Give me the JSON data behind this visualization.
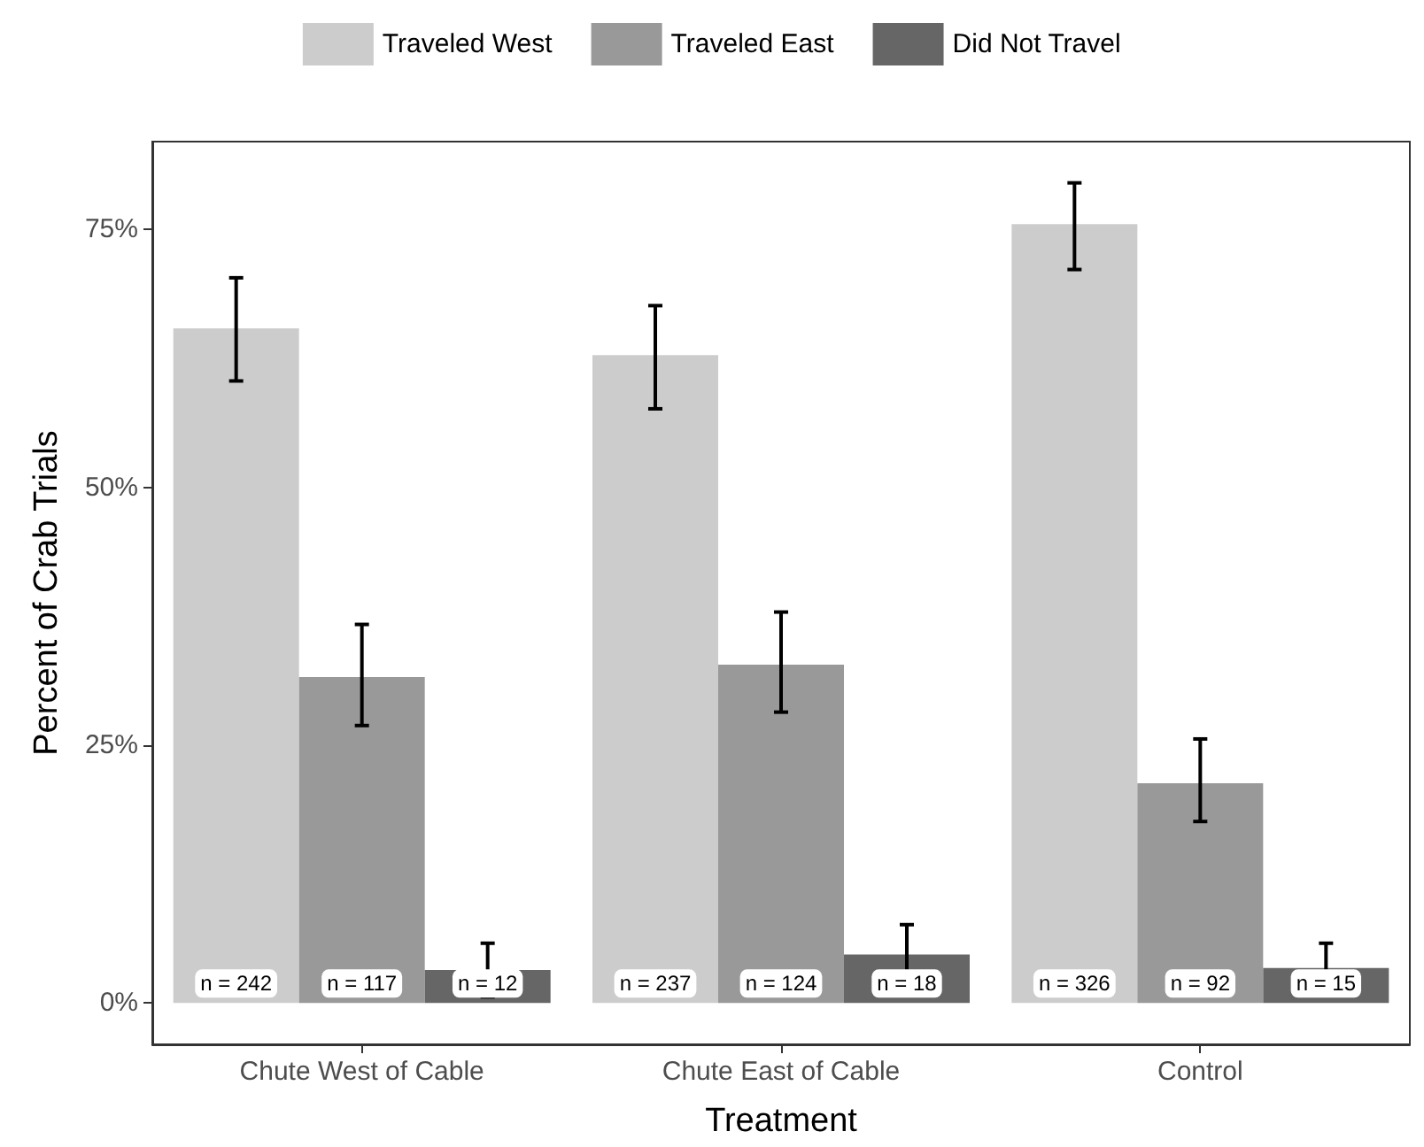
{
  "chart_data": {
    "type": "bar",
    "xlabel": "Treatment",
    "ylabel": "Percent of Crab Trials",
    "categories": [
      "Chute West of Cable",
      "Chute East of Cable",
      "Control"
    ],
    "series": [
      {
        "name": "Traveled West",
        "color": "#cccccc",
        "values": [
          65.4,
          62.8,
          75.5
        ],
        "errors": [
          [
            60.3,
            70.3
          ],
          [
            57.6,
            67.6
          ],
          [
            71.1,
            79.5
          ]
        ]
      },
      {
        "name": "Traveled East",
        "color": "#999999",
        "values": [
          31.6,
          32.8,
          21.3
        ],
        "errors": [
          [
            26.9,
            36.7
          ],
          [
            28.2,
            37.9
          ],
          [
            17.6,
            25.6
          ]
        ]
      },
      {
        "name": "Did Not Travel",
        "color": "#666666",
        "values": [
          3.2,
          4.7,
          3.4
        ],
        "errors": [
          [
            0.6,
            5.8
          ],
          [
            1.8,
            7.6
          ],
          [
            1.0,
            5.8
          ]
        ]
      }
    ],
    "annotations": [
      "n = 242",
      "n = 117",
      "n = 12",
      "n = 237",
      "n = 124",
      "n = 18",
      "n = 326",
      "n = 92",
      "n = 15"
    ],
    "ylim": [
      -4,
      83.5
    ],
    "yticks": [
      {
        "value": 0,
        "label": "0%"
      },
      {
        "value": 25,
        "label": "25%"
      },
      {
        "value": 50,
        "label": "50%"
      },
      {
        "value": 75,
        "label": "75%"
      }
    ],
    "legend": "top"
  }
}
